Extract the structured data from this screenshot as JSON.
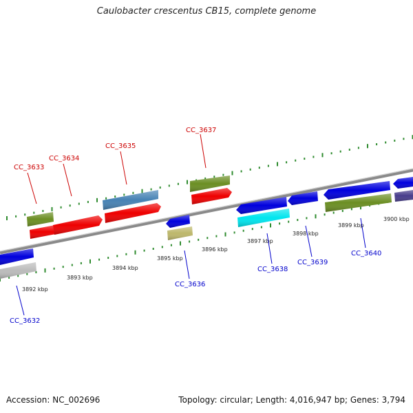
{
  "title": "Caulobacter crescentus CB15, complete genome",
  "accession": "Accession: NC_002696",
  "summary": "Topology: circular; Length: 4,016,947 bp; Genes: 3,794",
  "colors": {
    "backbone": "#8a8a8a",
    "tick": "#2e8b2e",
    "forward_label": "#cc0000",
    "reverse_label": "#0000cc"
  },
  "kbp_labels": [
    "3892 kbp",
    "3893 kbp",
    "3894 kbp",
    "3895 kbp",
    "3896 kbp",
    "3897 kbp",
    "3898 kbp",
    "3899 kbp",
    "3900 kbp"
  ],
  "gene_labels": {
    "forward": [
      "CC_3633",
      "CC_3634",
      "CC_3635",
      "CC_3637"
    ],
    "reverse": [
      "CC_3632",
      "CC_3636",
      "CC_3638",
      "CC_3639",
      "CC_3640"
    ]
  },
  "features": [
    {
      "id": "f1",
      "color": "#6b8e23"
    },
    {
      "id": "f2",
      "color": "#ee0000"
    },
    {
      "id": "f3",
      "color": "#ee0000"
    },
    {
      "id": "f4",
      "color": "#4682b4"
    },
    {
      "id": "f5",
      "color": "#ee0000"
    },
    {
      "id": "f6",
      "color": "#6b8e23"
    },
    {
      "id": "f7",
      "color": "#ee0000"
    },
    {
      "id": "r1",
      "color": "#0000dd"
    },
    {
      "id": "r2",
      "color": "#bbbbbb"
    },
    {
      "id": "r3",
      "color": "#0000dd"
    },
    {
      "id": "r4",
      "color": "#bdb76b"
    },
    {
      "id": "r5",
      "color": "#0000dd"
    },
    {
      "id": "r6",
      "color": "#00e5ee"
    },
    {
      "id": "r7",
      "color": "#0000dd"
    },
    {
      "id": "r8",
      "color": "#0000dd"
    },
    {
      "id": "r9",
      "color": "#6b8e23"
    },
    {
      "id": "r10",
      "color": "#0000dd"
    },
    {
      "id": "r11",
      "color": "#483d8b"
    }
  ]
}
